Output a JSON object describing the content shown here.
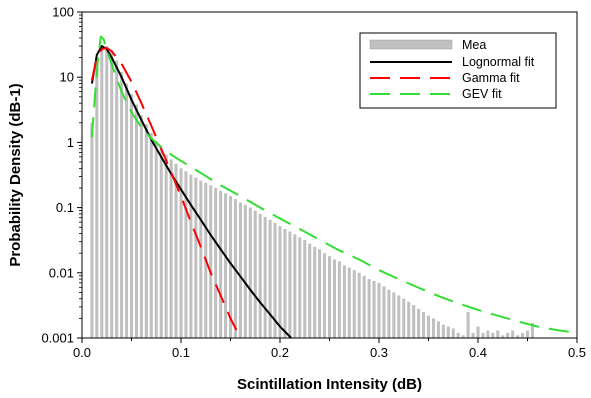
{
  "chart_data": {
    "type": "bar",
    "xlabel": "Scintillation Intensity (dB)",
    "ylabel": "Probability Density (dB-1)",
    "xlim": [
      0,
      0.5
    ],
    "ylim": [
      0.001,
      100
    ],
    "y_scale": "log",
    "grid": false,
    "legend_position": "top-right",
    "x_ticks": [
      "0.0",
      "0.1",
      "0.2",
      "0.3",
      "0.4",
      "0.5"
    ],
    "y_ticks": [
      "0.001",
      "0.01",
      "0.1",
      "1",
      "10",
      "100"
    ],
    "bin_width": 0.005,
    "series": [
      {
        "name": "Mea",
        "kind": "histogram",
        "color": "#c0c0c0",
        "x": [
          0.01,
          0.015,
          0.02,
          0.025,
          0.03,
          0.035,
          0.04,
          0.045,
          0.05,
          0.055,
          0.06,
          0.065,
          0.07,
          0.075,
          0.08,
          0.085,
          0.09,
          0.095,
          0.1,
          0.105,
          0.11,
          0.115,
          0.12,
          0.125,
          0.13,
          0.135,
          0.14,
          0.145,
          0.15,
          0.155,
          0.16,
          0.165,
          0.17,
          0.175,
          0.18,
          0.185,
          0.19,
          0.195,
          0.2,
          0.205,
          0.21,
          0.215,
          0.22,
          0.225,
          0.23,
          0.235,
          0.24,
          0.245,
          0.25,
          0.255,
          0.26,
          0.265,
          0.27,
          0.275,
          0.28,
          0.285,
          0.29,
          0.295,
          0.3,
          0.305,
          0.31,
          0.315,
          0.32,
          0.325,
          0.33,
          0.335,
          0.34,
          0.345,
          0.35,
          0.355,
          0.36,
          0.365,
          0.37,
          0.375,
          0.38,
          0.385,
          0.39,
          0.395,
          0.4,
          0.405,
          0.41,
          0.415,
          0.42,
          0.425,
          0.43,
          0.435,
          0.44,
          0.445,
          0.45,
          0.455
        ],
        "values": [
          2,
          20,
          28,
          30,
          25,
          18,
          12,
          8,
          5.5,
          3.8,
          2.6,
          1.9,
          1.4,
          1.05,
          0.8,
          0.65,
          0.55,
          0.47,
          0.4,
          0.36,
          0.32,
          0.29,
          0.26,
          0.24,
          0.22,
          0.2,
          0.18,
          0.165,
          0.15,
          0.135,
          0.12,
          0.11,
          0.1,
          0.09,
          0.08,
          0.072,
          0.065,
          0.058,
          0.052,
          0.047,
          0.043,
          0.039,
          0.035,
          0.032,
          0.028,
          0.025,
          0.023,
          0.02,
          0.018,
          0.016,
          0.015,
          0.013,
          0.012,
          0.011,
          0.01,
          0.009,
          0.008,
          0.0075,
          0.007,
          0.0062,
          0.0055,
          0.005,
          0.0045,
          0.004,
          0.0036,
          0.0032,
          0.0028,
          0.0025,
          0.0022,
          0.002,
          0.0018,
          0.0016,
          0.0015,
          0.0014,
          0.0012,
          0.0011,
          0.0025,
          0.0012,
          0.0015,
          0.0012,
          0.0013,
          0.0012,
          0.0013,
          0.0011,
          0.0012,
          0.0013,
          0.0011,
          0.0012,
          0.0013,
          0.0017
        ]
      },
      {
        "name": "Lognormal fit",
        "kind": "line",
        "color": "#000000",
        "dash": "solid",
        "x": [
          0.01,
          0.015,
          0.02,
          0.025,
          0.03,
          0.04,
          0.05,
          0.06,
          0.07,
          0.08,
          0.09,
          0.1,
          0.11,
          0.12,
          0.13,
          0.14,
          0.15,
          0.16,
          0.17,
          0.18,
          0.19,
          0.2,
          0.21,
          0.22
        ],
        "y": [
          8,
          22,
          30,
          27,
          20,
          10,
          4.5,
          2.2,
          1.1,
          0.6,
          0.33,
          0.19,
          0.11,
          0.065,
          0.038,
          0.023,
          0.014,
          0.0088,
          0.0055,
          0.0035,
          0.0023,
          0.0015,
          0.00105,
          0.00072
        ]
      },
      {
        "name": "Gamma fit",
        "kind": "line",
        "color": "#ff0000",
        "dash": "long-dash",
        "x": [
          0.01,
          0.015,
          0.02,
          0.025,
          0.03,
          0.04,
          0.05,
          0.06,
          0.07,
          0.08,
          0.09,
          0.1,
          0.11,
          0.12,
          0.13,
          0.14,
          0.15,
          0.16,
          0.17
        ],
        "y": [
          9,
          20,
          27,
          28,
          25,
          16,
          8.5,
          4,
          1.8,
          0.8,
          0.35,
          0.15,
          0.06,
          0.025,
          0.01,
          0.0045,
          0.002,
          0.001,
          0.00055
        ]
      },
      {
        "name": "GEV fit",
        "kind": "line",
        "color": "#33dd33",
        "dash": "long-dash",
        "x": [
          0.01,
          0.013,
          0.016,
          0.019,
          0.022,
          0.025,
          0.03,
          0.035,
          0.04,
          0.05,
          0.06,
          0.07,
          0.08,
          0.09,
          0.1,
          0.12,
          0.14,
          0.16,
          0.18,
          0.2,
          0.22,
          0.24,
          0.26,
          0.28,
          0.3,
          0.32,
          0.34,
          0.36,
          0.38,
          0.4,
          0.42,
          0.44,
          0.46,
          0.48,
          0.5
        ],
        "y": [
          1.2,
          5,
          18,
          42,
          38,
          26,
          16,
          9.5,
          6,
          2.9,
          1.7,
          1.15,
          0.85,
          0.65,
          0.52,
          0.34,
          0.22,
          0.15,
          0.1,
          0.068,
          0.047,
          0.032,
          0.022,
          0.016,
          0.011,
          0.008,
          0.0059,
          0.0044,
          0.0034,
          0.0027,
          0.0022,
          0.0018,
          0.0015,
          0.00132,
          0.0012
        ]
      }
    ]
  }
}
